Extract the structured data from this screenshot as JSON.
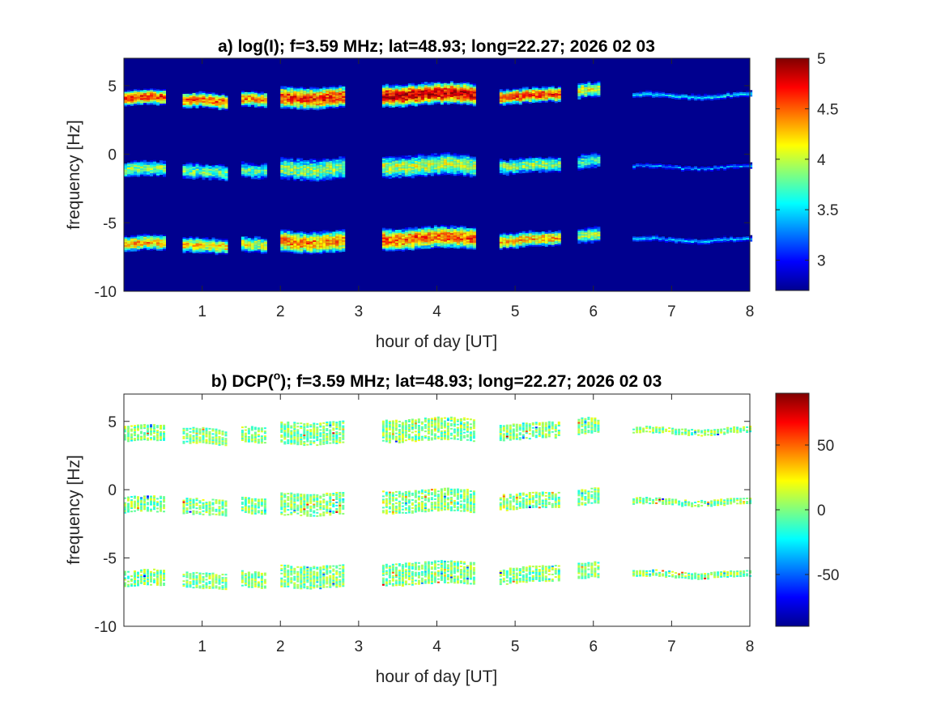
{
  "chart_data": [
    {
      "type": "heatmap",
      "title": "a) log(I); f=3.59 MHz;  lat=48.93; long=22.27; 2026 02 03",
      "xlabel": "hour of day [UT]",
      "ylabel": "frequency [Hz]",
      "xlim": [
        0,
        8
      ],
      "ylim": [
        -10,
        7
      ],
      "xticks": [
        1,
        2,
        3,
        4,
        5,
        6,
        7,
        8
      ],
      "yticks": [
        -10,
        -5,
        0,
        5
      ],
      "background": "#00008f",
      "colormap": "jet",
      "colorbar": {
        "range": [
          2.7,
          5
        ],
        "ticks": [
          3,
          3.5,
          4,
          4.5,
          5
        ],
        "tick_labels": [
          "3",
          "3.5",
          "4",
          "4.5",
          "5"
        ]
      },
      "time_segments": [
        {
          "start": 0.0,
          "end": 0.5
        },
        {
          "start": 0.75,
          "end": 1.3
        },
        {
          "start": 1.5,
          "end": 1.8
        },
        {
          "start": 2.0,
          "end": 2.8
        },
        {
          "start": 3.3,
          "end": 4.5
        },
        {
          "start": 4.8,
          "end": 5.55
        },
        {
          "start": 5.8,
          "end": 6.05
        },
        {
          "start": 6.5,
          "end": 8.0
        }
      ],
      "bands": [
        {
          "name": "upper",
          "center_hz": [
            4.1,
            3.9,
            4.0,
            4.2,
            4.4,
            4.3,
            4.7,
            4.3
          ],
          "intensity": [
            4.6,
            4.5,
            4.4,
            4.6,
            4.8,
            4.6,
            4.1,
            3.6
          ]
        },
        {
          "name": "middle",
          "center_hz": [
            -1.1,
            -1.3,
            -1.2,
            -1.0,
            -0.8,
            -0.8,
            -0.5,
            -0.9
          ],
          "intensity": [
            3.9,
            3.8,
            3.7,
            3.9,
            4.0,
            3.9,
            3.7,
            3.4
          ]
        },
        {
          "name": "lower",
          "center_hz": [
            -6.5,
            -6.7,
            -6.6,
            -6.3,
            -6.1,
            -6.2,
            -5.9,
            -6.2
          ],
          "intensity": [
            4.3,
            4.2,
            4.1,
            4.4,
            4.5,
            4.3,
            3.9,
            3.5
          ]
        }
      ]
    },
    {
      "type": "heatmap",
      "title": "b) DCP(°); f=3.59 MHz;  lat=48.93; long=22.27; 2026 02 03",
      "title_parts": {
        "prefix": "b) DCP(",
        "superscript": "o",
        "suffix": "); f=3.59 MHz;  lat=48.93; long=22.27; 2026 02 03"
      },
      "xlabel": "hour of day [UT]",
      "ylabel": "frequency [Hz]",
      "xlim": [
        0,
        8
      ],
      "ylim": [
        -10,
        7
      ],
      "xticks": [
        1,
        2,
        3,
        4,
        5,
        6,
        7,
        8
      ],
      "yticks": [
        -10,
        -5,
        0,
        5
      ],
      "background": "#ffffff",
      "colormap": "jet",
      "colorbar": {
        "range": [
          -90,
          90
        ],
        "ticks": [
          -50,
          0,
          50
        ],
        "tick_labels": [
          "-50",
          "0",
          "50"
        ]
      },
      "dominant_value_deg": 0
    }
  ]
}
